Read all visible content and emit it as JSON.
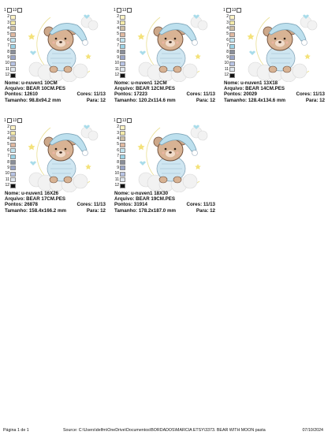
{
  "designs": [
    {
      "nome": "Nome: u-nuven1 10CM",
      "arquivo": "Arquivo: BEAR 10CM.PES",
      "pontos": "Pontos: 12610",
      "cores": "Cores: 11/13",
      "tamanho": "Tamanho: 98.8x94.2 mm",
      "para": "Para: 12"
    },
    {
      "nome": "Nome: u-nuven1 12CM",
      "arquivo": "Arquivo: BEAR 12CM.PES",
      "pontos": "Pontos: 17223",
      "cores": "Cores: 11/13",
      "tamanho": "Tamanho: 120.2x114.6 mm",
      "para": "Para: 12"
    },
    {
      "nome": "Nome: u-nuven1 13X18",
      "arquivo": "Arquivo: BEAR 14CM.PES",
      "pontos": "Pontos: 20029",
      "cores": "Cores: 11/13",
      "tamanho": "Tamanho: 128.4x134.6 mm",
      "para": "Para: 12"
    },
    {
      "nome": "Nome: u-nuven1 16X26",
      "arquivo": "Arquivo: BEAR 17CM.PES",
      "pontos": "Pontos: 26878",
      "cores": "Cores: 11/13",
      "tamanho": "Tamanho: 158.4x166.2 mm",
      "para": "Para: 12"
    },
    {
      "nome": "Nome: u-nuven1 18X30",
      "arquivo": "Arquivo: BEAR 19CM.PES",
      "pontos": "Pontos: 31914",
      "cores": "Cores: 11/13",
      "tamanho": "Tamanho: 178.2x187.0 mm",
      "para": "Para: 12"
    }
  ],
  "top_numbers": [
    "1",
    "13"
  ],
  "swatch_numbers": [
    "2",
    "3",
    "4",
    "5",
    "6",
    "7",
    "8",
    "9",
    "10",
    "11",
    "12"
  ],
  "swatch_colors": [
    "#fff3c4",
    "#f3e9a8",
    "#cdbfa5",
    "#e0b8a0",
    "#bfe3ef",
    "#9bd3e6",
    "#8a8f9a",
    "#9aa6c8",
    "#b8c4e4",
    "#dfe6ee",
    "#111111"
  ],
  "footer": {
    "page": "Página 1 de 1",
    "source": "Source: C:\\Users\\delfm\\OneDrive\\Documentos\\BORDADOS\\MARCIA ETSY\\3373. BEAR WITH MOON pasta",
    "date": "07/10/2024"
  }
}
